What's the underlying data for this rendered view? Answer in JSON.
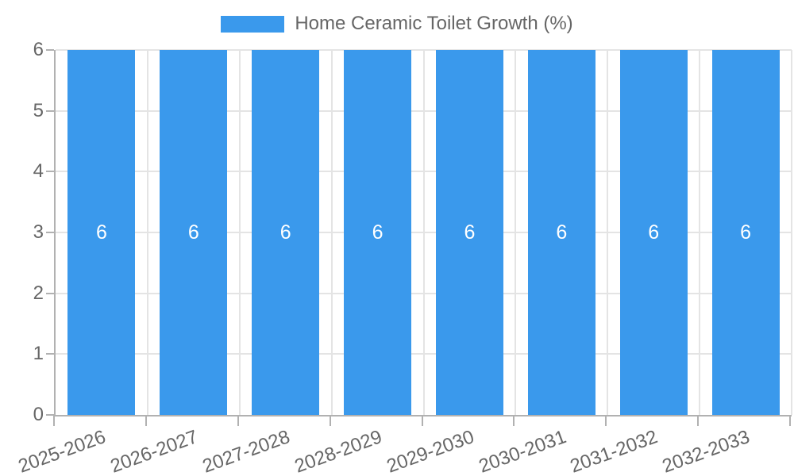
{
  "chart_data": {
    "type": "bar",
    "title": "Home Ceramic Toilet Growth (%)",
    "categories": [
      "2025-2026",
      "2026-2027",
      "2027-2028",
      "2028-2029",
      "2029-2030",
      "2030-2031",
      "2031-2032",
      "2032-2033"
    ],
    "values": [
      6,
      6,
      6,
      6,
      6,
      6,
      6,
      6
    ],
    "data_labels": [
      "6",
      "6",
      "6",
      "6",
      "6",
      "6",
      "6",
      "6"
    ],
    "xlabel": "",
    "ylabel": "",
    "ylim": [
      0,
      6
    ],
    "yticks": [
      0,
      1,
      2,
      3,
      4,
      5,
      6
    ],
    "grid": true,
    "legend": {
      "position": "top",
      "entries": [
        "Home Ceramic Toilet Growth (%)"
      ]
    },
    "x_label_rotation_deg": -20
  },
  "colors": {
    "bar": "#3a99ec",
    "grid_light": "#e4e4e4",
    "axis": "#b1b1b1",
    "tick_text": "#666666",
    "bar_label_text": "#ffffff",
    "background": "#ffffff"
  }
}
